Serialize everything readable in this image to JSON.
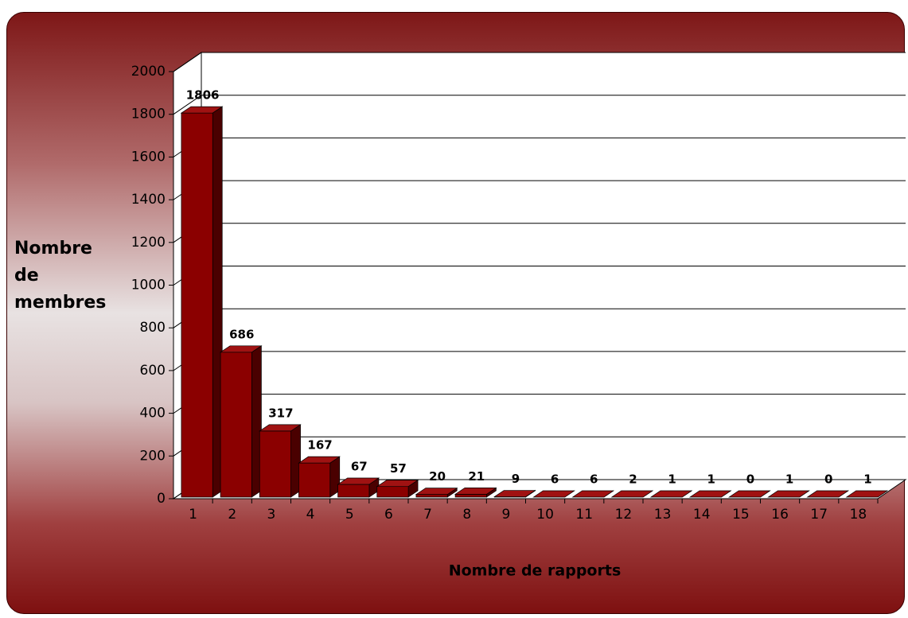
{
  "chart_data": {
    "type": "bar3d",
    "x_label": "Nombre de rapports",
    "y_label": "Nombre de membres",
    "categories": [
      1,
      2,
      3,
      4,
      5,
      6,
      7,
      8,
      9,
      10,
      11,
      12,
      13,
      14,
      15,
      16,
      17,
      18
    ],
    "values": [
      1806,
      686,
      317,
      167,
      67,
      57,
      20,
      21,
      9,
      6,
      6,
      2,
      1,
      1,
      0,
      1,
      0,
      1
    ],
    "color": "#8b0000",
    "ylim": [
      0,
      2000
    ],
    "yticks": [
      0,
      200,
      400,
      600,
      800,
      1000,
      1200,
      1400,
      1600,
      1800,
      2000
    ],
    "grid": true
  }
}
